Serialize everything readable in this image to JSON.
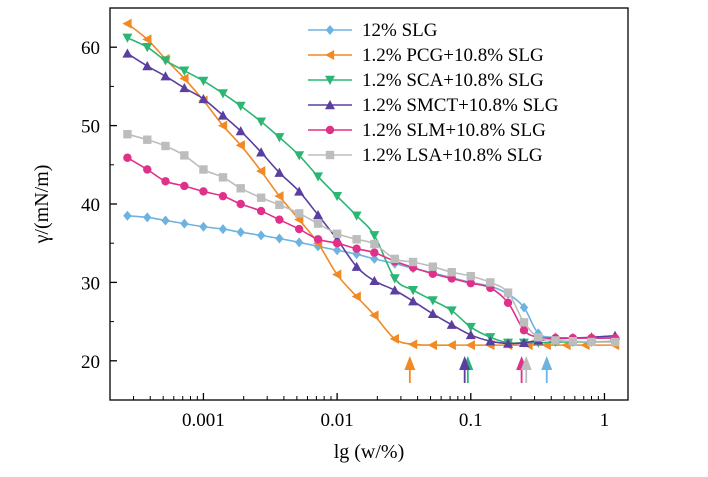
{
  "chart_data": {
    "type": "line",
    "xlabel": "lg (w/%)",
    "ylabel": "γ/(mN/m)",
    "x_scale": "log",
    "xlim": [
      0.0002,
      1.5
    ],
    "ylim": [
      15,
      65
    ],
    "x_ticks": [
      {
        "value": 0.001,
        "label": "0.001"
      },
      {
        "value": 0.01,
        "label": "0.01"
      },
      {
        "value": 0.1,
        "label": "0.1"
      },
      {
        "value": 1,
        "label": "1"
      }
    ],
    "y_ticks": [
      {
        "value": 20,
        "label": "20"
      },
      {
        "value": 30,
        "label": "30"
      },
      {
        "value": 40,
        "label": "40"
      },
      {
        "value": 50,
        "label": "50"
      },
      {
        "value": 60,
        "label": "60"
      }
    ],
    "grid": false,
    "legend_position": "top-right",
    "series": [
      {
        "name": "12% SLG",
        "color": "#6db3e0",
        "marker": "diamond",
        "cmc": 0.37,
        "x": [
          0.00027,
          0.00038,
          0.00052,
          0.00072,
          0.001,
          0.0014,
          0.0019,
          0.0027,
          0.0037,
          0.0052,
          0.0072,
          0.01,
          0.014,
          0.019,
          0.027,
          0.037,
          0.052,
          0.072,
          0.1,
          0.14,
          0.19,
          0.25,
          0.32,
          0.43,
          0.58,
          0.8,
          1.2
        ],
        "y": [
          38.5,
          38.3,
          37.9,
          37.5,
          37.1,
          36.8,
          36.4,
          36.0,
          35.6,
          35.1,
          34.6,
          34.1,
          33.6,
          33.0,
          32.4,
          31.8,
          31.2,
          30.6,
          30.0,
          29.5,
          28.5,
          26.8,
          23.5,
          23.0,
          22.9,
          22.9,
          22.9
        ]
      },
      {
        "name": "1.2% PCG+10.8% SLG",
        "color": "#f08a24",
        "marker": "triangle-left",
        "cmc": 0.035,
        "x": [
          0.00027,
          0.00038,
          0.00052,
          0.00072,
          0.001,
          0.0014,
          0.0019,
          0.0027,
          0.0037,
          0.0052,
          0.0072,
          0.01,
          0.014,
          0.019,
          0.027,
          0.037,
          0.052,
          0.072,
          0.1,
          0.14,
          0.19,
          0.27,
          0.37,
          0.52,
          0.72,
          1.2
        ],
        "y": [
          63.0,
          61.0,
          58.5,
          56.0,
          53.2,
          50.0,
          47.5,
          44.2,
          41.0,
          38.0,
          35.0,
          31.0,
          28.2,
          25.8,
          22.8,
          22.1,
          22.0,
          22.0,
          22.0,
          22.0,
          22.0,
          22.0,
          22.0,
          22.0,
          22.0,
          22.0
        ]
      },
      {
        "name": "1.2% SCA+10.8% SLG",
        "color": "#2bb673",
        "marker": "triangle-down",
        "cmc": 0.095,
        "x": [
          0.00027,
          0.00038,
          0.00052,
          0.00072,
          0.001,
          0.0014,
          0.0019,
          0.0027,
          0.0037,
          0.0052,
          0.0072,
          0.01,
          0.014,
          0.019,
          0.027,
          0.037,
          0.052,
          0.072,
          0.1,
          0.14,
          0.19,
          0.25,
          0.32,
          0.43,
          0.58,
          0.8,
          1.2
        ],
        "y": [
          61.2,
          60.0,
          58.3,
          57.0,
          55.7,
          54.1,
          52.5,
          50.5,
          48.5,
          46.2,
          43.5,
          41.0,
          38.5,
          36.0,
          30.5,
          29.0,
          27.7,
          26.4,
          24.3,
          23.0,
          22.3,
          22.3,
          22.3,
          22.4,
          22.4,
          22.4,
          22.5
        ]
      },
      {
        "name": "1.2% SMCT+10.8% SLG",
        "color": "#5b3fa0",
        "marker": "triangle-up",
        "cmc": 0.09,
        "x": [
          0.00027,
          0.00038,
          0.00052,
          0.00072,
          0.001,
          0.0014,
          0.0019,
          0.0027,
          0.0037,
          0.0052,
          0.0072,
          0.01,
          0.014,
          0.019,
          0.027,
          0.037,
          0.052,
          0.072,
          0.1,
          0.14,
          0.19,
          0.25,
          0.32,
          0.43,
          0.58,
          0.8,
          1.2
        ],
        "y": [
          59.2,
          57.6,
          56.3,
          54.8,
          53.4,
          51.3,
          49.3,
          46.6,
          44.0,
          41.6,
          38.6,
          35.5,
          32.0,
          30.2,
          29.0,
          27.6,
          26.0,
          24.6,
          23.3,
          22.5,
          22.2,
          22.3,
          22.6,
          22.8,
          22.9,
          23.0,
          23.2
        ]
      },
      {
        "name": "1.2% SLM+10.8% SLG",
        "color": "#e0308a",
        "marker": "circle",
        "cmc": 0.24,
        "x": [
          0.00027,
          0.00038,
          0.00052,
          0.00072,
          0.001,
          0.0014,
          0.0019,
          0.0027,
          0.0037,
          0.0052,
          0.0072,
          0.01,
          0.014,
          0.019,
          0.027,
          0.037,
          0.052,
          0.072,
          0.1,
          0.14,
          0.19,
          0.25,
          0.32,
          0.43,
          0.58,
          0.8,
          1.2
        ],
        "y": [
          45.9,
          44.4,
          42.9,
          42.3,
          41.6,
          41.0,
          40.0,
          39.1,
          38.0,
          36.8,
          35.5,
          35.0,
          34.3,
          33.8,
          32.7,
          31.9,
          31.1,
          30.5,
          29.9,
          29.3,
          27.4,
          23.9,
          23.0,
          22.9,
          22.9,
          22.9,
          22.9
        ]
      },
      {
        "name": "1.2% LSA+10.8% SLG",
        "color": "#bdbdbd",
        "marker": "square",
        "cmc": 0.26,
        "x": [
          0.00027,
          0.00038,
          0.00052,
          0.00072,
          0.001,
          0.0014,
          0.0019,
          0.0027,
          0.0037,
          0.0052,
          0.0072,
          0.01,
          0.014,
          0.019,
          0.027,
          0.037,
          0.052,
          0.072,
          0.1,
          0.14,
          0.19,
          0.25,
          0.32,
          0.43,
          0.58,
          0.8,
          1.2
        ],
        "y": [
          48.9,
          48.2,
          47.4,
          46.2,
          44.4,
          43.4,
          42.0,
          40.8,
          39.9,
          38.8,
          37.5,
          36.2,
          35.5,
          34.9,
          33.0,
          32.6,
          32.0,
          31.3,
          30.8,
          30.0,
          28.7,
          24.9,
          23.0,
          22.6,
          22.5,
          22.4,
          22.4
        ]
      }
    ]
  }
}
